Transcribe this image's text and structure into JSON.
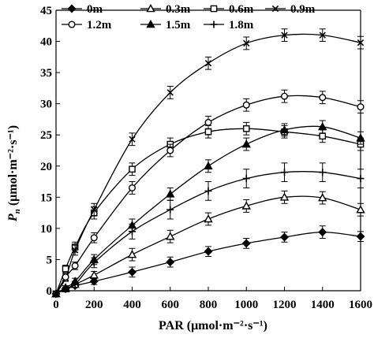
{
  "chart_data": {
    "type": "line",
    "xlabel": "PAR (μmol·m⁻²·s⁻¹)",
    "ylabel": "Pn (μmol·m⁻²·s⁻¹)",
    "ylabel_main": "P",
    "ylabel_sub": "n",
    "ylabel_rest": " (μmol·m⁻²·s⁻¹)",
    "xlim": [
      0,
      1600
    ],
    "ylim": [
      0,
      45
    ],
    "x_ticks": [
      0,
      200,
      400,
      600,
      800,
      1000,
      1200,
      1400,
      1600
    ],
    "y_ticks": [
      0,
      5,
      10,
      15,
      20,
      25,
      30,
      35,
      40,
      45
    ],
    "legend_position": "top",
    "grid": false,
    "x": [
      0,
      50,
      100,
      200,
      400,
      600,
      800,
      1000,
      1200,
      1400,
      1600
    ],
    "series": [
      {
        "name": "0m",
        "marker": "diamond",
        "values": [
          -0.5,
          0.3,
          0.8,
          1.5,
          3.0,
          4.6,
          6.3,
          7.6,
          8.6,
          9.4,
          8.7
        ],
        "errors": [
          0.3,
          0.3,
          0.3,
          0.5,
          0.8,
          0.8,
          0.8,
          0.8,
          0.8,
          1.0,
          0.8
        ]
      },
      {
        "name": "0.3m",
        "marker": "triangle-open",
        "values": [
          -0.5,
          0.3,
          1.0,
          2.5,
          5.8,
          8.7,
          11.5,
          13.6,
          15.0,
          14.9,
          13.0
        ],
        "errors": [
          0.3,
          0.3,
          0.4,
          0.6,
          1.0,
          1.0,
          1.0,
          1.0,
          1.0,
          1.0,
          1.0
        ]
      },
      {
        "name": "0.6m",
        "marker": "square-open",
        "values": [
          -0.5,
          3.5,
          7.0,
          12.5,
          19.5,
          23.5,
          25.5,
          26.0,
          25.5,
          24.8,
          23.5
        ],
        "errors": [
          0.3,
          0.6,
          0.8,
          1.0,
          1.0,
          1.0,
          1.0,
          1.0,
          1.0,
          1.0,
          1.0
        ]
      },
      {
        "name": "0.9m",
        "marker": "x",
        "values": [
          -0.5,
          2.0,
          6.5,
          13.0,
          24.3,
          31.8,
          36.5,
          39.7,
          41.0,
          41.0,
          39.8
        ],
        "errors": [
          0.3,
          0.5,
          0.8,
          1.0,
          1.0,
          1.0,
          1.0,
          1.0,
          1.0,
          1.0,
          1.0
        ]
      },
      {
        "name": "1.2m",
        "marker": "circle-open",
        "values": [
          -0.5,
          2.2,
          4.0,
          8.5,
          16.5,
          22.5,
          27.0,
          29.8,
          31.2,
          31.0,
          29.5
        ],
        "errors": [
          0.3,
          0.5,
          0.6,
          0.8,
          1.0,
          1.0,
          1.0,
          1.0,
          1.0,
          1.0,
          1.0
        ]
      },
      {
        "name": "1.5m",
        "marker": "triangle",
        "values": [
          -0.5,
          0.5,
          1.5,
          5.0,
          10.5,
          15.5,
          20.0,
          23.5,
          25.8,
          26.3,
          24.5
        ],
        "errors": [
          0.3,
          0.3,
          0.5,
          0.8,
          1.0,
          1.0,
          1.0,
          1.0,
          1.0,
          1.0,
          1.0
        ]
      },
      {
        "name": "1.8m",
        "marker": "plus",
        "values": [
          -0.5,
          0.3,
          1.0,
          4.5,
          9.5,
          13.0,
          16.0,
          18.0,
          19.0,
          19.0,
          18.0
        ],
        "errors": [
          0.3,
          0.3,
          0.5,
          0.8,
          1.2,
          1.5,
          1.5,
          1.5,
          1.5,
          1.5,
          1.5
        ]
      }
    ]
  }
}
